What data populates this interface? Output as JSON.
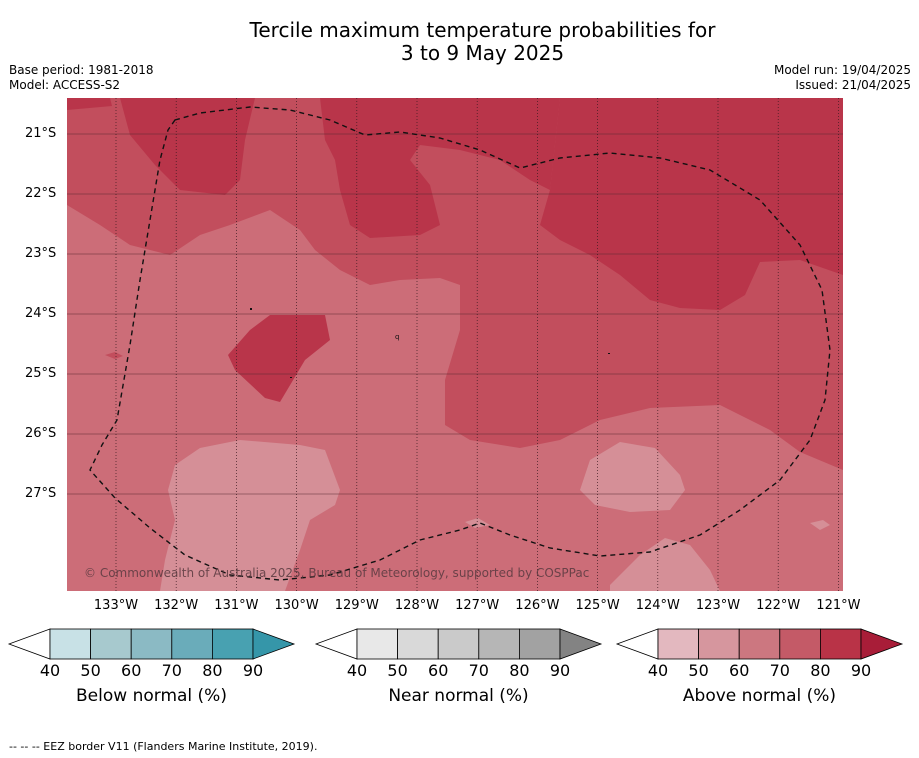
{
  "title_line1": "Tercile maximum temperature probabilities for",
  "title_line2": "3 to 9 May 2025",
  "meta_left": [
    "Base period: 1981-2018",
    "Model: ACCESS-S2"
  ],
  "meta_right": [
    "Model run: 19/04/2025",
    "Issued: 21/04/2025"
  ],
  "copyright": "© Commonwealth of Australia 2025, Bureau of Meteorology, supported by COSPPac",
  "footer": "--  --  -- EEZ border V11 (Flanders Marine Institute, 2019).",
  "lat_labels": [
    "21°S",
    "22°S",
    "23°S",
    "24°S",
    "25°S",
    "26°S",
    "27°S"
  ],
  "lon_labels": [
    "133°W",
    "132°W",
    "131°W",
    "130°W",
    "129°W",
    "128°W",
    "127°W",
    "126°W",
    "125°W",
    "124°W",
    "123°W",
    "122°W",
    "121°W"
  ],
  "colorbars": [
    {
      "label": "Below normal (%)",
      "ticks": [
        "40",
        "50",
        "60",
        "70",
        "80",
        "90"
      ],
      "colors": [
        "#ffffff",
        "#c8e1e6",
        "#a7c9ce",
        "#8bbac4",
        "#6aacba",
        "#48a1b1",
        "#3596a9"
      ]
    },
    {
      "label": "Near normal (%)",
      "ticks": [
        "40",
        "50",
        "60",
        "70",
        "80",
        "90"
      ],
      "colors": [
        "#ffffff",
        "#e8e8e8",
        "#d9d9d9",
        "#cacaca",
        "#b6b6b6",
        "#a2a2a2",
        "#838383"
      ]
    },
    {
      "label": "Above normal (%)",
      "ticks": [
        "40",
        "50",
        "60",
        "70",
        "80",
        "90"
      ],
      "colors": [
        "#ffffff",
        "#e3b8bf",
        "#d6969e",
        "#cc7780",
        "#c45a67",
        "#b93347",
        "#a81d38"
      ]
    }
  ],
  "map_colors": {
    "p60_70": "#cc6d78",
    "p50_60": "#d58f97",
    "p70_80": "#c24e5d",
    "p80_90": "#b9354a"
  }
}
